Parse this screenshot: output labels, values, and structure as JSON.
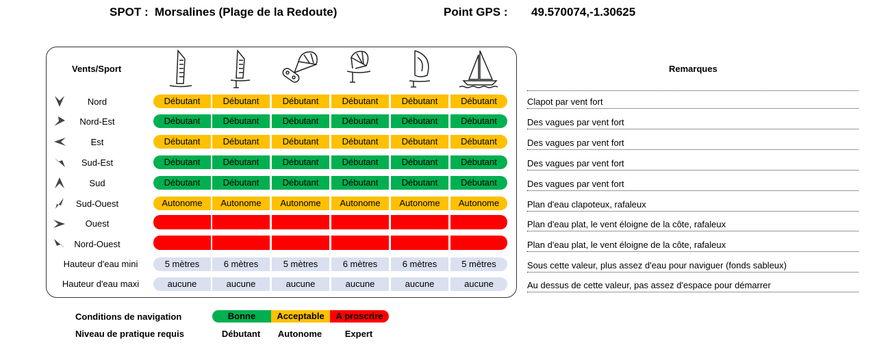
{
  "header": {
    "spot_label": "SPOT :",
    "spot_name": "Morsalines (Plage de la Redoute)",
    "gps_label": "Point GPS :",
    "gps_value": "49.570074,-1.30625"
  },
  "table": {
    "corner_title": "Vents/Sport",
    "sports": [
      {
        "icon": "windsurf-icon"
      },
      {
        "icon": "windfoil-icon"
      },
      {
        "icon": "kitesurf-icon"
      },
      {
        "icon": "kitefoil-icon"
      },
      {
        "icon": "wingfoil-icon"
      },
      {
        "icon": "sailboat-icon"
      }
    ],
    "rows": [
      {
        "label": "Nord",
        "icon": "arrow-north-icon",
        "color": "#ffc000",
        "values": [
          "Débutant",
          "Débutant",
          "Débutant",
          "Débutant",
          "Débutant",
          "Débutant"
        ]
      },
      {
        "label": "Nord-Est",
        "icon": "arrow-northeast-icon",
        "color": "#00b050",
        "values": [
          "Débutant",
          "Débutant",
          "Débutant",
          "Débutant",
          "Débutant",
          "Débutant"
        ]
      },
      {
        "label": "Est",
        "icon": "arrow-east-icon",
        "color": "#ffc000",
        "values": [
          "Débutant",
          "Débutant",
          "Débutant",
          "Débutant",
          "Débutant",
          "Débutant"
        ]
      },
      {
        "label": "Sud-Est",
        "icon": "arrow-southeast-icon",
        "color": "#00b050",
        "values": [
          "Débutant",
          "Débutant",
          "Débutant",
          "Débutant",
          "Débutant",
          "Débutant"
        ]
      },
      {
        "label": "Sud",
        "icon": "arrow-south-icon",
        "color": "#00b050",
        "values": [
          "Débutant",
          "Débutant",
          "Débutant",
          "Débutant",
          "Débutant",
          "Débutant"
        ]
      },
      {
        "label": "Sud-Ouest",
        "icon": "arrow-southwest-icon",
        "color": "#ffc000",
        "values": [
          "Autonome",
          "Autonome",
          "Autonome",
          "Autonome",
          "Autonome",
          "Autonome"
        ]
      },
      {
        "label": "Ouest",
        "icon": "arrow-west-icon",
        "color": "#ff0000",
        "values": [
          "",
          "",
          "",
          "",
          "",
          ""
        ]
      },
      {
        "label": "Nord-Ouest",
        "icon": "arrow-northwest-icon",
        "color": "#ff0000",
        "values": [
          "",
          "",
          "",
          "",
          "",
          ""
        ]
      }
    ],
    "depth_rows": [
      {
        "label": "Hauteur d'eau mini",
        "values": [
          "5 mètres",
          "6 mètres",
          "5 mètres",
          "6 mètres",
          "6 mètres",
          "5 mètres"
        ]
      },
      {
        "label": "Hauteur d'eau maxi",
        "values": [
          "aucune",
          "aucune",
          "aucune",
          "aucune",
          "aucune",
          "aucune"
        ]
      }
    ]
  },
  "remarks": {
    "title": "Remarques",
    "items": [
      "Clapot par vent fort",
      "Des vagues par vent fort",
      "Des vagues par vent fort",
      "Des vagues par vent fort",
      "Des vagues par vent fort",
      "Plan d'eau clapoteux, rafaleux",
      "Plan d'eau plat, le vent éloigne de la côte, rafaleux",
      "Plan d'eau plat, le vent éloigne de la côte, rafaleux",
      "Sous cette valeur, plus assez d'eau pour naviguer (fonds sableux)",
      "Au dessus de cette valeur, pas assez d'espace pour démarrer"
    ]
  },
  "legend": {
    "conditions_label": "Conditions de navigation",
    "level_label": "Niveau de pratique requis",
    "items": [
      {
        "condition": "Bonne",
        "level": "Débutant",
        "color": "#00b050"
      },
      {
        "condition": "Acceptable",
        "level": "Autonome",
        "color": "#ffc000"
      },
      {
        "condition": "A proscrire",
        "level": "Expert",
        "color": "#ff0000"
      }
    ]
  }
}
